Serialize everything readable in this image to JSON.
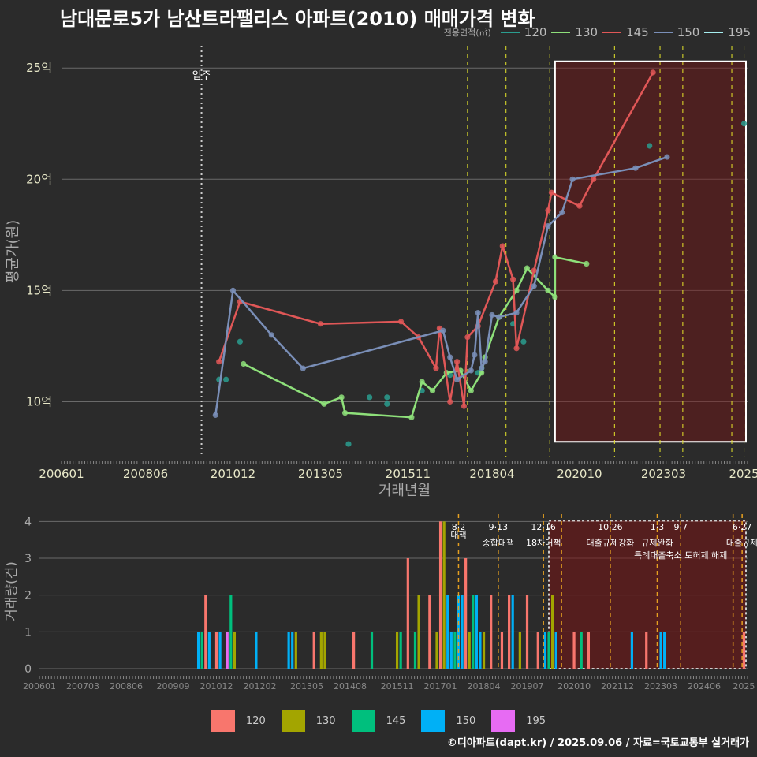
{
  "title": "남대문로5가 남산트라팰리스 아파트(2010) 매매가격 변화",
  "legend_title": "전용면적(㎡)",
  "series_colors": {
    "120": "#f8766d",
    "130": "#a3a500",
    "145": "#00bf7d",
    "150": "#00b0f6",
    "195": "#e76bf3"
  },
  "line_colors": {
    "120": "#2a9d8f",
    "130": "#8ee07a",
    "145": "#e05757",
    "150": "#7a8fb8",
    "195": "#a6eef0"
  },
  "credit": "©디아파트(dapt.kr) / 2025.09.06 / 자료=국토교통부 실거래가",
  "chart_data": [
    {
      "type": "line",
      "title": "남대문로5가 남산트라팰리스 아파트(2010) 매매가격 변화",
      "xlabel": "거래년월",
      "ylabel": "평균가(원)",
      "xlim": [
        2006.0,
        2025.6
      ],
      "ylim": [
        7.5,
        26.0
      ],
      "xticks": [
        {
          "v": 2006.0,
          "label": "200601"
        },
        {
          "v": 2008.4,
          "label": "200806"
        },
        {
          "v": 2010.9,
          "label": "201012"
        },
        {
          "v": 2013.4,
          "label": "201305"
        },
        {
          "v": 2015.9,
          "label": "201511"
        },
        {
          "v": 2018.3,
          "label": "201804"
        },
        {
          "v": 2020.8,
          "label": "202010"
        },
        {
          "v": 2023.2,
          "label": "202303"
        },
        {
          "v": 2025.5,
          "label": "2025"
        }
      ],
      "yticks": [
        {
          "v": 10,
          "label": "10억"
        },
        {
          "v": 15,
          "label": "15억"
        },
        {
          "v": 20,
          "label": "20억"
        },
        {
          "v": 25,
          "label": "25억"
        }
      ],
      "annotation": {
        "x": 2010.0,
        "label": "입주"
      },
      "policy_lines": [
        2017.6,
        2018.7,
        2019.95,
        2021.8,
        2023.1,
        2023.75,
        2025.15,
        2025.5
      ],
      "highlight": {
        "x0": 2020.1,
        "x1": 2025.6,
        "y0": 8.2,
        "y1": 25.3
      },
      "series": [
        {
          "name": "120",
          "points": [
            [
              2010.5,
              11.0
            ],
            [
              2010.7,
              11.0
            ],
            [
              2011.1,
              12.7
            ],
            [
              2014.2,
              8.1
            ],
            [
              2014.8,
              10.2
            ],
            [
              2015.3,
              10.2
            ],
            [
              2015.3,
              9.9
            ],
            [
              2016.3,
              10.5
            ],
            [
              2017.1,
              11.2
            ],
            [
              2017.9,
              11.3
            ],
            [
              2018.0,
              11.5
            ],
            [
              2018.9,
              13.5
            ],
            [
              2019.2,
              12.7
            ],
            [
              2022.8,
              21.5
            ],
            [
              2025.5,
              22.5
            ]
          ],
          "connect": false
        },
        {
          "name": "130",
          "points": [
            [
              2011.2,
              11.7
            ],
            [
              2013.5,
              9.9
            ],
            [
              2014.0,
              10.2
            ],
            [
              2014.1,
              9.5
            ],
            [
              2016.0,
              9.3
            ],
            [
              2016.3,
              10.9
            ],
            [
              2016.6,
              10.5
            ],
            [
              2017.0,
              11.3
            ],
            [
              2017.4,
              11.4
            ],
            [
              2017.7,
              10.5
            ],
            [
              2018.0,
              11.3
            ],
            [
              2018.1,
              12.0
            ],
            [
              2018.5,
              13.8
            ],
            [
              2019.0,
              15.0
            ],
            [
              2019.3,
              16.0
            ],
            [
              2019.9,
              15.0
            ],
            [
              2020.1,
              14.7
            ],
            [
              2020.1,
              16.5
            ],
            [
              2021.0,
              16.2
            ]
          ],
          "connect": true
        },
        {
          "name": "145",
          "points": [
            [
              2010.5,
              11.8
            ],
            [
              2011.1,
              14.5
            ],
            [
              2013.4,
              13.5
            ],
            [
              2015.7,
              13.6
            ],
            [
              2016.2,
              12.9
            ],
            [
              2016.7,
              11.5
            ],
            [
              2016.8,
              13.3
            ],
            [
              2017.1,
              10.0
            ],
            [
              2017.3,
              11.8
            ],
            [
              2017.5,
              9.8
            ],
            [
              2017.6,
              12.9
            ],
            [
              2017.9,
              13.4
            ],
            [
              2018.4,
              15.4
            ],
            [
              2018.6,
              17.0
            ],
            [
              2018.9,
              15.5
            ],
            [
              2019.0,
              12.4
            ],
            [
              2019.5,
              15.9
            ],
            [
              2019.9,
              18.6
            ],
            [
              2020.0,
              19.4
            ],
            [
              2020.8,
              18.8
            ],
            [
              2021.2,
              20.0
            ],
            [
              2022.9,
              24.8
            ]
          ],
          "connect": true
        },
        {
          "name": "150",
          "points": [
            [
              2010.4,
              9.4
            ],
            [
              2010.9,
              15.0
            ],
            [
              2012.0,
              13.0
            ],
            [
              2012.9,
              11.5
            ],
            [
              2016.9,
              13.2
            ],
            [
              2017.1,
              12.0
            ],
            [
              2017.3,
              11.0
            ],
            [
              2017.7,
              11.4
            ],
            [
              2017.8,
              12.1
            ],
            [
              2017.9,
              14.0
            ],
            [
              2018.0,
              11.5
            ],
            [
              2018.1,
              11.8
            ],
            [
              2018.3,
              13.9
            ],
            [
              2018.5,
              13.8
            ],
            [
              2019.0,
              14.0
            ],
            [
              2019.5,
              15.2
            ],
            [
              2019.9,
              17.9
            ],
            [
              2020.3,
              18.5
            ],
            [
              2020.6,
              20.0
            ],
            [
              2022.4,
              20.5
            ],
            [
              2023.3,
              21.0
            ]
          ],
          "connect": true
        }
      ]
    },
    {
      "type": "bar",
      "xlabel": "",
      "ylabel": "거래량(건)",
      "xlim": [
        2006.0,
        2025.6
      ],
      "ylim": [
        0,
        4.2
      ],
      "yticks": [
        0,
        1,
        2,
        3,
        4
      ],
      "xticks": [
        {
          "v": 2006.0,
          "label": "200601"
        },
        {
          "v": 2007.2,
          "label": "200703"
        },
        {
          "v": 2008.4,
          "label": "200806"
        },
        {
          "v": 2009.7,
          "label": "200909"
        },
        {
          "v": 2010.9,
          "label": "201012"
        },
        {
          "v": 2012.1,
          "label": "201202"
        },
        {
          "v": 2013.4,
          "label": "201305"
        },
        {
          "v": 2014.6,
          "label": "201408"
        },
        {
          "v": 2015.9,
          "label": "201511"
        },
        {
          "v": 2017.1,
          "label": "201701"
        },
        {
          "v": 2018.3,
          "label": "201804"
        },
        {
          "v": 2019.5,
          "label": "201907"
        },
        {
          "v": 2020.8,
          "label": "202010"
        },
        {
          "v": 2022.0,
          "label": "202112"
        },
        {
          "v": 2023.2,
          "label": "202303"
        },
        {
          "v": 2024.4,
          "label": "202406"
        },
        {
          "v": 2025.5,
          "label": "2025"
        }
      ],
      "policy_lines": [
        {
          "x": 2017.6,
          "date": "8·2",
          "label": "대책",
          "row": 0
        },
        {
          "x": 2018.7,
          "date": "9·13",
          "label": "종합대책",
          "row": 1
        },
        {
          "x": 2019.95,
          "date": "12·16",
          "label": "18차대책",
          "row": 1
        },
        {
          "x": 2020.45,
          "date": "",
          "label": "",
          "row": 0
        },
        {
          "x": 2021.8,
          "date": "10·26",
          "label": "대출규제강화",
          "row": 1
        },
        {
          "x": 2023.1,
          "date": "1·3",
          "label": "규제완화",
          "row": 1
        },
        {
          "x": 2023.75,
          "date": "9·7",
          "label": "특례대출축소 토허제 해제",
          "row": 2
        },
        {
          "x": 2025.2,
          "date": "",
          "label": "",
          "row": 0
        },
        {
          "x": 2025.45,
          "date": "6·27",
          "label": "대출규제",
          "row": 1
        }
      ],
      "highlight": {
        "x0": 2020.1,
        "x1": 2025.6
      },
      "bars": [
        {
          "x": 2010.4,
          "s": "150",
          "v": 1
        },
        {
          "x": 2010.5,
          "s": "145",
          "v": 1
        },
        {
          "x": 2010.6,
          "s": "120",
          "v": 2
        },
        {
          "x": 2010.7,
          "s": "150",
          "v": 1
        },
        {
          "x": 2010.9,
          "s": "120",
          "v": 1
        },
        {
          "x": 2011.0,
          "s": "150",
          "v": 1
        },
        {
          "x": 2011.2,
          "s": "195",
          "v": 1
        },
        {
          "x": 2011.3,
          "s": "145",
          "v": 2
        },
        {
          "x": 2011.4,
          "s": "130",
          "v": 1
        },
        {
          "x": 2012.0,
          "s": "150",
          "v": 1
        },
        {
          "x": 2012.9,
          "s": "150",
          "v": 1
        },
        {
          "x": 2013.0,
          "s": "150",
          "v": 1
        },
        {
          "x": 2013.1,
          "s": "130",
          "v": 1
        },
        {
          "x": 2013.6,
          "s": "120",
          "v": 1
        },
        {
          "x": 2013.8,
          "s": "130",
          "v": 1
        },
        {
          "x": 2013.9,
          "s": "130",
          "v": 1
        },
        {
          "x": 2014.7,
          "s": "120",
          "v": 1
        },
        {
          "x": 2015.2,
          "s": "145",
          "v": 1
        },
        {
          "x": 2015.9,
          "s": "130",
          "v": 1
        },
        {
          "x": 2016.0,
          "s": "145",
          "v": 1
        },
        {
          "x": 2016.2,
          "s": "120",
          "v": 3
        },
        {
          "x": 2016.4,
          "s": "145",
          "v": 1
        },
        {
          "x": 2016.5,
          "s": "130",
          "v": 2
        },
        {
          "x": 2016.8,
          "s": "120",
          "v": 2
        },
        {
          "x": 2017.0,
          "s": "130",
          "v": 1
        },
        {
          "x": 2017.1,
          "s": "120",
          "v": 4
        },
        {
          "x": 2017.2,
          "s": "130",
          "v": 4
        },
        {
          "x": 2017.3,
          "s": "150",
          "v": 2
        },
        {
          "x": 2017.4,
          "s": "150",
          "v": 1
        },
        {
          "x": 2017.5,
          "s": "145",
          "v": 1
        },
        {
          "x": 2017.6,
          "s": "150",
          "v": 2
        },
        {
          "x": 2017.7,
          "s": "150",
          "v": 2
        },
        {
          "x": 2017.8,
          "s": "120",
          "v": 3
        },
        {
          "x": 2017.9,
          "s": "130",
          "v": 1
        },
        {
          "x": 2018.0,
          "s": "145",
          "v": 2
        },
        {
          "x": 2018.1,
          "s": "150",
          "v": 2
        },
        {
          "x": 2018.2,
          "s": "150",
          "v": 1
        },
        {
          "x": 2018.3,
          "s": "130",
          "v": 1
        },
        {
          "x": 2018.5,
          "s": "120",
          "v": 2
        },
        {
          "x": 2018.8,
          "s": "120",
          "v": 1
        },
        {
          "x": 2019.0,
          "s": "120",
          "v": 2
        },
        {
          "x": 2019.1,
          "s": "150",
          "v": 2
        },
        {
          "x": 2019.3,
          "s": "130",
          "v": 1
        },
        {
          "x": 2019.5,
          "s": "120",
          "v": 2
        },
        {
          "x": 2019.8,
          "s": "120",
          "v": 1
        },
        {
          "x": 2020.0,
          "s": "150",
          "v": 1
        },
        {
          "x": 2020.1,
          "s": "145",
          "v": 1
        },
        {
          "x": 2020.2,
          "s": "130",
          "v": 2
        },
        {
          "x": 2020.3,
          "s": "150",
          "v": 1
        },
        {
          "x": 2020.8,
          "s": "120",
          "v": 1
        },
        {
          "x": 2021.0,
          "s": "145",
          "v": 1
        },
        {
          "x": 2021.2,
          "s": "120",
          "v": 1
        },
        {
          "x": 2022.4,
          "s": "150",
          "v": 1
        },
        {
          "x": 2022.8,
          "s": "120",
          "v": 1
        },
        {
          "x": 2023.2,
          "s": "150",
          "v": 1
        },
        {
          "x": 2023.3,
          "s": "150",
          "v": 1
        },
        {
          "x": 2025.5,
          "s": "120",
          "v": 1
        }
      ]
    }
  ],
  "legend_items": [
    "120",
    "130",
    "145",
    "150",
    "195"
  ]
}
